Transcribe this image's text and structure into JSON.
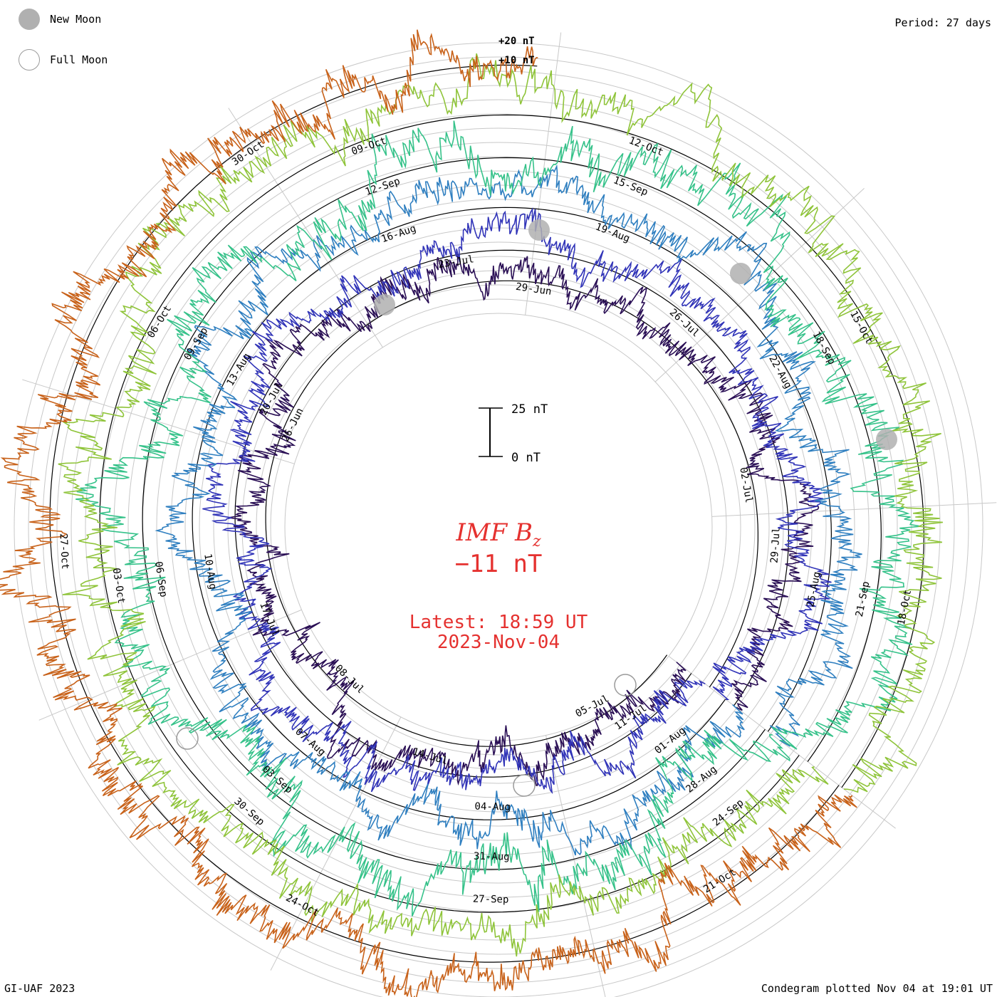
{
  "legend": {
    "new_moon_label": "New Moon",
    "full_moon_label": "Full Moon"
  },
  "period_label": "Period: 27 days",
  "footer": {
    "left": "GI-UAF 2023",
    "right": "Condegram plotted Nov 04 at 19:01 UT"
  },
  "headline": {
    "title_main": "IMF B",
    "title_sub": "z",
    "value": "−11 nT",
    "latest_label": "Latest: 18:59 UT",
    "latest_date": "2023-Nov-04"
  },
  "colors": {
    "headline": "#e5312f",
    "grid": "#c8c8c8",
    "baseline": "#000000",
    "moon_new": "#b0b0b0"
  },
  "chart_data": {
    "type": "condegram",
    "title": "IMF Bz",
    "period_days": 27,
    "unit": "nT",
    "scale_bar": {
      "top_label": "25 nT",
      "bottom_label": "0 nT",
      "span_nT": 25
    },
    "top_scale_labels": [
      "+20 nT",
      "+10 nT"
    ],
    "latest_value_nT": -11,
    "rotations": [
      {
        "color": "#2a0f55",
        "date_labels": [
          "05-Jul",
          "08-Jul",
          "26-Jun",
          "29-Jun",
          "02-Jul"
        ],
        "amplitude_nT": 6
      },
      {
        "color": "#3134b8",
        "date_labels": [
          "11-Jul",
          "14-Jul",
          "17-Jul",
          "20-Jul",
          "23-Jul",
          "26-Jul",
          "29-Jul"
        ],
        "amplitude_nT": 6
      },
      {
        "color": "#2f7fc0",
        "date_labels": [
          "01-Aug",
          "04-Aug",
          "07-Aug",
          "10-Aug",
          "13-Aug",
          "16-Aug",
          "19-Aug",
          "22-Aug",
          "25-Aug"
        ],
        "amplitude_nT": 7
      },
      {
        "color": "#36c28a",
        "date_labels": [
          "28-Aug",
          "31-Aug",
          "03-Sep",
          "06-Sep",
          "09-Sep",
          "12-Sep",
          "15-Sep",
          "18-Sep",
          "21-Sep"
        ],
        "amplitude_nT": 9
      },
      {
        "color": "#8fc43a",
        "date_labels": [
          "24-Sep",
          "27-Sep",
          "30-Sep",
          "03-Oct",
          "06-Oct",
          "09-Oct",
          "12-Oct",
          "15-Oct",
          "18-Oct"
        ],
        "amplitude_nT": 8
      },
      {
        "color": "#c8621a",
        "date_labels": [
          "21-Oct",
          "24-Oct",
          "27-Oct",
          "30-Oct"
        ],
        "amplitude_nT": 8
      }
    ]
  }
}
